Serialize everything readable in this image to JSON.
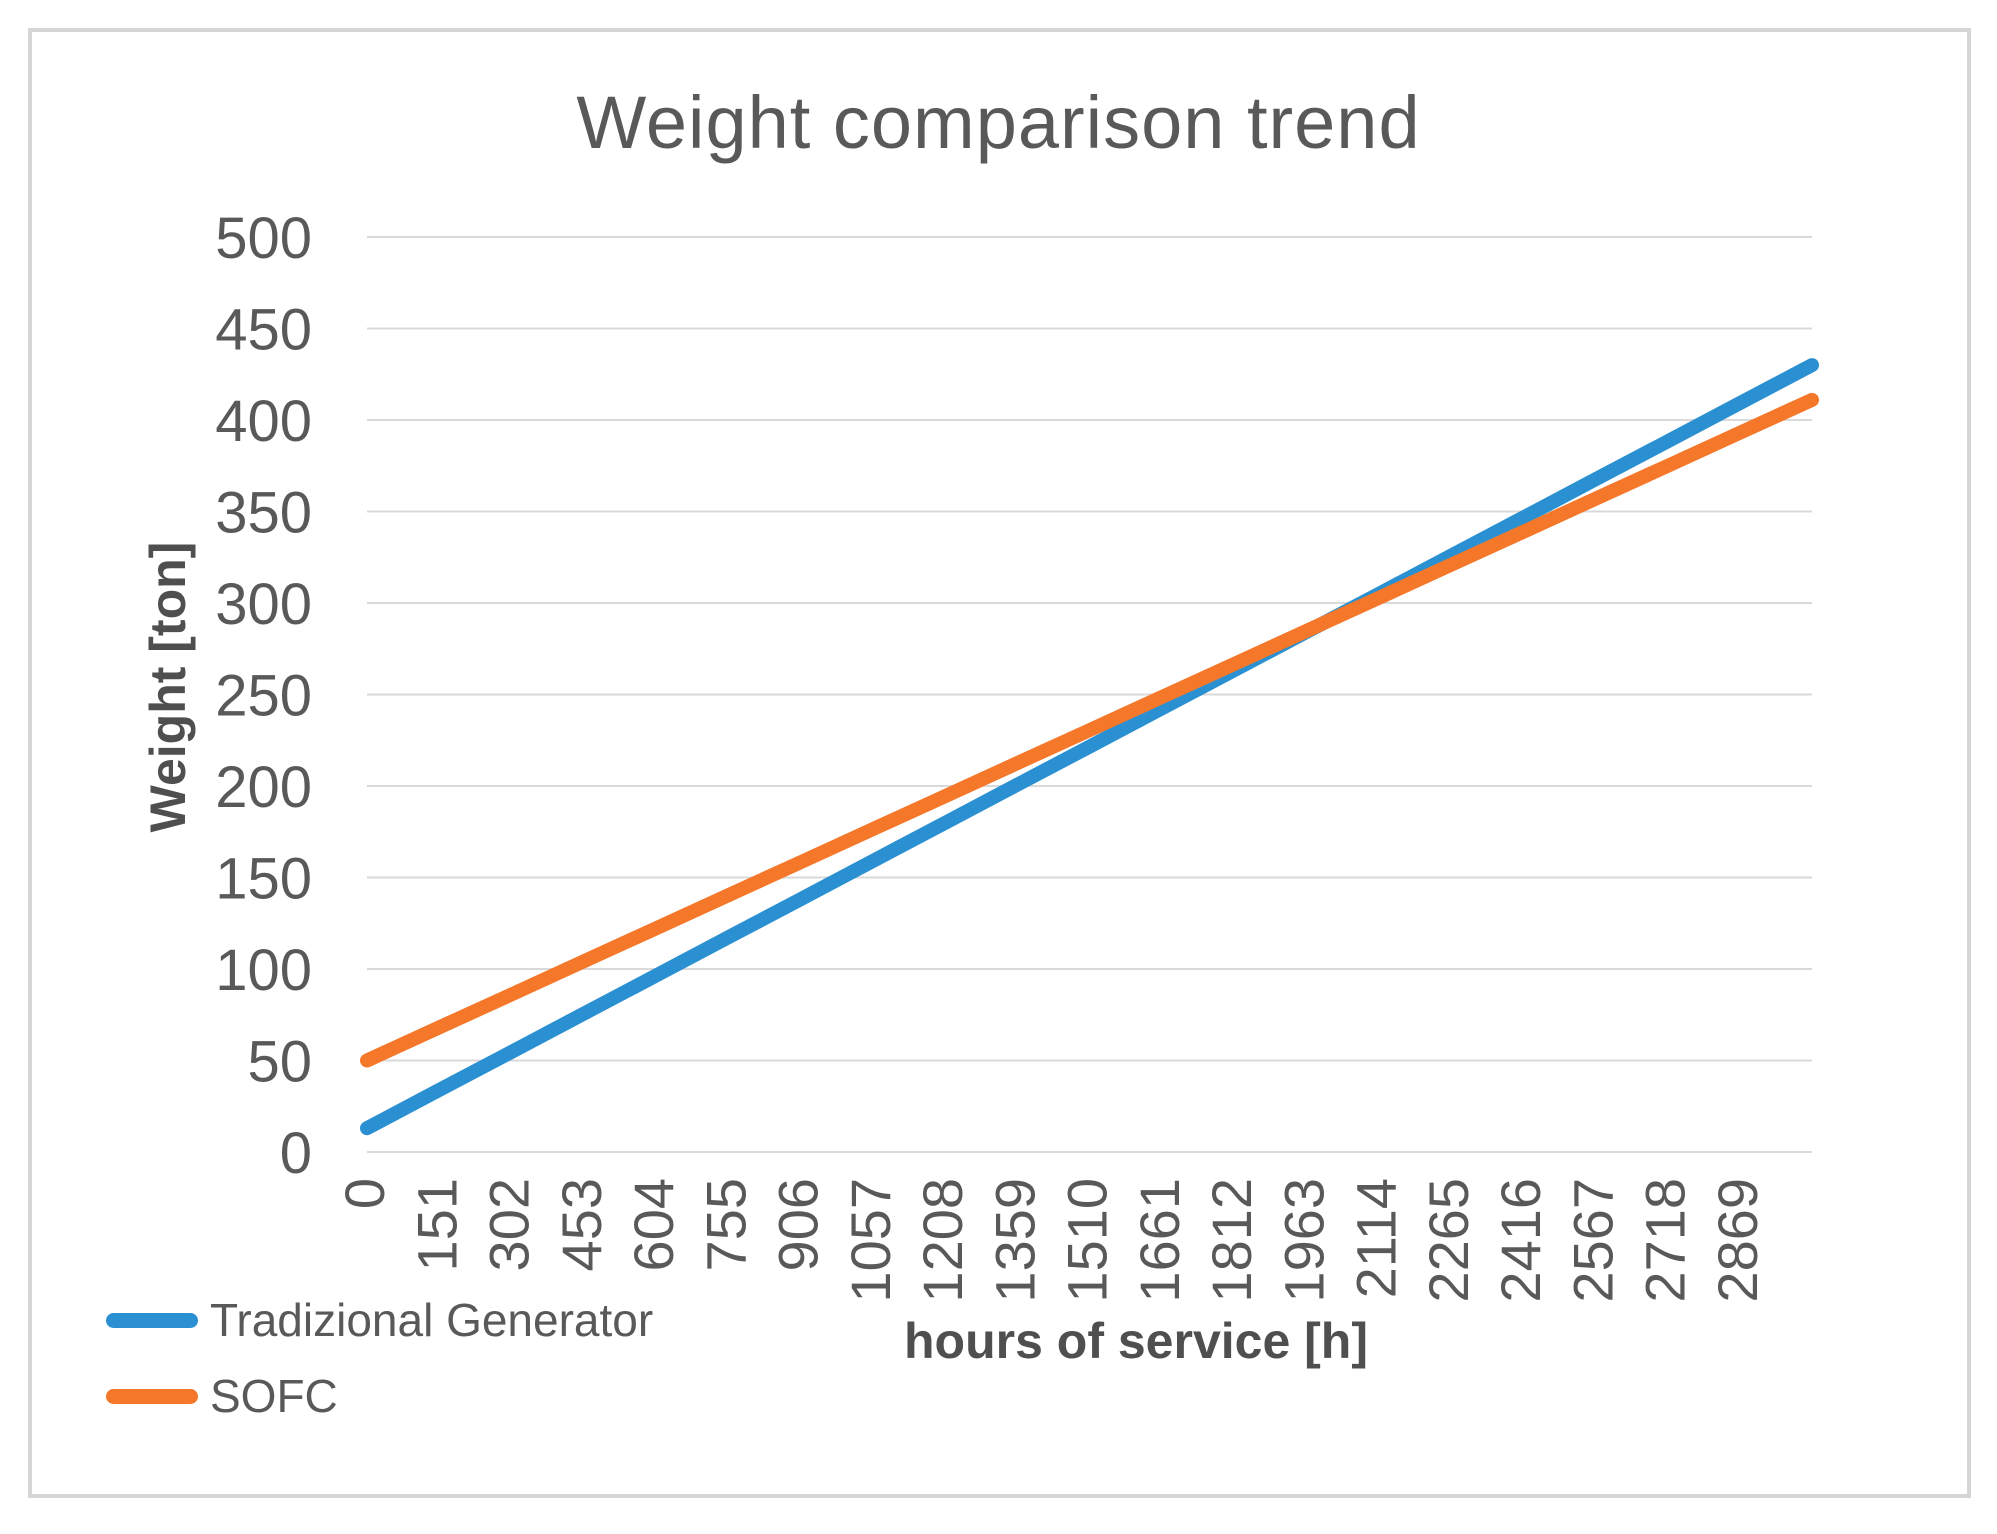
{
  "chart": {
    "title": "Weight comparison trend",
    "y_axis": {
      "title": "Weight [ton]"
    },
    "x_axis": {
      "title": "hours of service [h]"
    },
    "legend": [
      {
        "label": "Tradizional Generator",
        "color": "#2A90D1"
      },
      {
        "label": "SOFC",
        "color": "#F5782A"
      }
    ]
  },
  "colors": {
    "grid": "#D9D9D9",
    "frame_border": "#D6D6D6",
    "text": "#595959",
    "series_blue": "#2A90D1",
    "series_orange": "#F5782A"
  },
  "chart_data": {
    "type": "line",
    "title": "Weight comparison trend",
    "xlabel": "hours of service [h]",
    "ylabel": "Weight [ton]",
    "ylim": [
      0,
      500
    ],
    "y_ticks": [
      0,
      50,
      100,
      150,
      200,
      250,
      300,
      350,
      400,
      450,
      500
    ],
    "grid": "horizontal",
    "legend_position": "bottom-left",
    "x": [
      0,
      151,
      302,
      453,
      604,
      755,
      906,
      1057,
      1208,
      1359,
      1510,
      1661,
      1812,
      1963,
      2114,
      2265,
      2416,
      2567,
      2718,
      2869,
      3020
    ],
    "x_tick_labels": [
      "0",
      "151",
      "302",
      "453",
      "604",
      "755",
      "906",
      "1057",
      "1208",
      "1359",
      "1510",
      "1661",
      "1812",
      "1963",
      "2114",
      "2265",
      "2416",
      "2567",
      "2718",
      "2869"
    ],
    "series": [
      {
        "name": "Tradizional Generator",
        "color": "#2A90D1",
        "values": [
          13.0,
          33.9,
          54.7,
          75.6,
          96.4,
          117.3,
          138.1,
          159.0,
          179.8,
          200.7,
          221.5,
          242.4,
          263.2,
          284.1,
          304.9,
          325.8,
          346.6,
          367.5,
          388.3,
          409.2,
          430.0
        ]
      },
      {
        "name": "SOFC",
        "color": "#F5782A",
        "values": [
          50.0,
          68.1,
          86.1,
          104.2,
          122.2,
          140.3,
          158.3,
          176.4,
          194.4,
          212.5,
          230.5,
          248.6,
          266.6,
          284.7,
          302.7,
          320.8,
          338.8,
          356.9,
          374.9,
          393.0,
          411.0
        ]
      }
    ]
  }
}
